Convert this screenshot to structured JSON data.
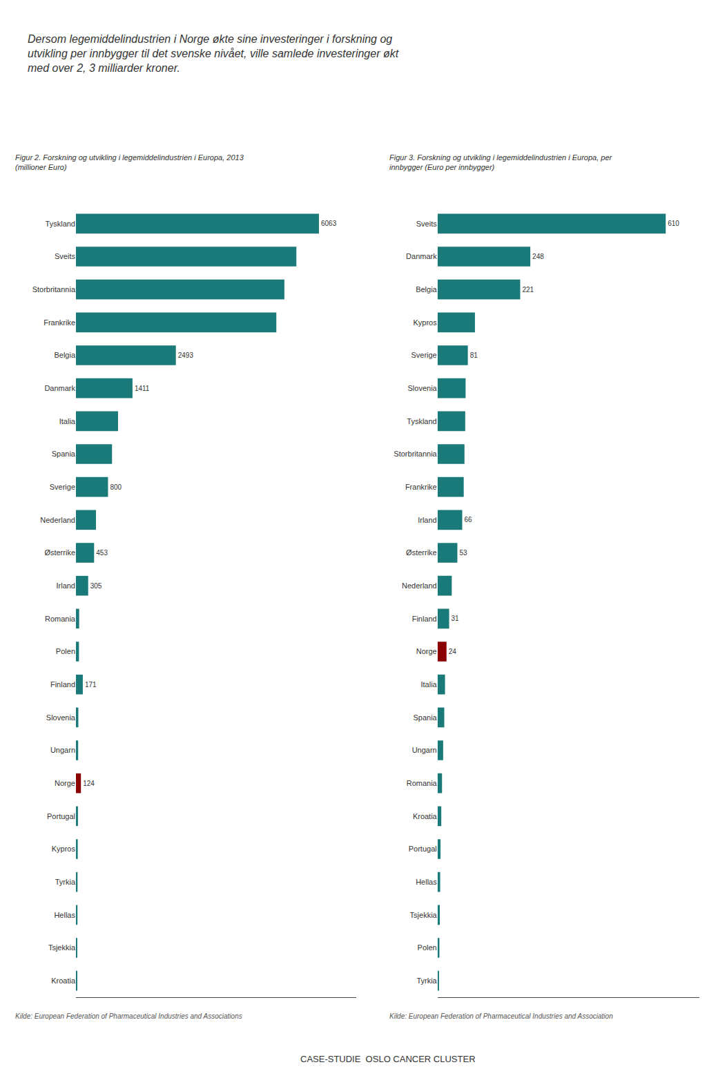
{
  "title": "Dersom legemiddelindustrien i Norge økte sine investeringer i forskning og\nutvikling per innbygger til det svenske nivået, ville samlede investeringer økt\nmed over 2, 3 milliarder kroner.",
  "annotations": [
    "CASE-STUDIE  OSLO CANCER CLUSTER"
  ],
  "chart_data": [
    {
      "type": "bar",
      "orientation": "horizontal",
      "title": "Figur 2. Forskning og utvikling i legemiddelindustrien i Europa, 2013\n(millioner Euro)",
      "categories": [
        "Tyskland",
        "Sveits",
        "Storbritannia",
        "Frankrike",
        "Belgia",
        "Danmark",
        "Italia",
        "Spania",
        "Sverige",
        "Nederland",
        "Østerrike",
        "Irland",
        "Romania",
        "Polen",
        "Finland",
        "Slovenia",
        "Ungarn",
        "Norge",
        "Portugal",
        "Kypros",
        "Tyrkia",
        "Hellas",
        "Tsjekkia",
        "Kroatia"
      ],
      "values": [
        6063,
        5500,
        5200,
        5000,
        2493,
        1411,
        1050,
        900,
        800,
        500,
        453,
        305,
        80,
        75,
        171,
        60,
        55,
        124,
        50,
        45,
        40,
        38,
        35,
        30
      ],
      "value_labels": [
        "6063",
        null,
        null,
        null,
        "2493",
        "1411",
        null,
        null,
        "800",
        null,
        "453",
        "305",
        null,
        null,
        "171",
        null,
        null,
        "124",
        null,
        null,
        null,
        null,
        null,
        null
      ],
      "colors": [
        "#1a7a7a",
        "#1a7a7a",
        "#1a7a7a",
        "#1a7a7a",
        "#1a7a7a",
        "#1a7a7a",
        "#1a7a7a",
        "#1a7a7a",
        "#1a7a7a",
        "#1a7a7a",
        "#1a7a7a",
        "#1a7a7a",
        "#1a7a7a",
        "#1a7a7a",
        "#1a7a7a",
        "#1a7a7a",
        "#1a7a7a",
        "#8B0000",
        "#1a7a7a",
        "#1a7a7a",
        "#1a7a7a",
        "#1a7a7a",
        "#1a7a7a",
        "#1a7a7a"
      ],
      "xlim": [
        0,
        7000
      ],
      "tick_labels": "y",
      "grid": false,
      "annotations": [
        "Kilde: European Federation of Pharmaceutical Industries and Associations"
      ]
    },
    {
      "type": "bar",
      "orientation": "horizontal",
      "title": "Figur 3. Forskning og utvikling i legemiddelindustrien i Europa, per\ninnbygger (Euro per innbygger)",
      "categories": [
        "Sveits",
        "Danmark",
        "Belgia",
        "Kypros",
        "Sverige",
        "Slovenia",
        "Tyskland",
        "Storbritannia",
        "Frankrike",
        "Irland",
        "Østerrike",
        "Nederland",
        "Finland",
        "Norge",
        "Italia",
        "Spania",
        "Ungarn",
        "Romania",
        "Kroatia",
        "Portugal",
        "Hellas",
        "Tsjekkia",
        "Polen",
        "Tyrkia"
      ],
      "values": [
        610,
        248,
        221,
        100,
        81,
        75,
        74,
        72,
        70,
        66,
        53,
        38,
        31,
        24,
        20,
        18,
        15,
        12,
        10,
        8,
        7,
        6,
        5,
        4
      ],
      "value_labels": [
        "610",
        "248",
        "221",
        null,
        "81",
        null,
        null,
        null,
        null,
        "66",
        "53",
        null,
        "31",
        "24",
        null,
        null,
        null,
        null,
        null,
        null,
        null,
        null,
        null,
        null
      ],
      "colors": [
        "#1a7a7a",
        "#1a7a7a",
        "#1a7a7a",
        "#1a7a7a",
        "#1a7a7a",
        "#1a7a7a",
        "#1a7a7a",
        "#1a7a7a",
        "#1a7a7a",
        "#1a7a7a",
        "#1a7a7a",
        "#1a7a7a",
        "#1a7a7a",
        "#8B0000",
        "#1a7a7a",
        "#1a7a7a",
        "#1a7a7a",
        "#1a7a7a",
        "#1a7a7a",
        "#1a7a7a",
        "#1a7a7a",
        "#1a7a7a",
        "#1a7a7a",
        "#1a7a7a"
      ],
      "xlim": [
        0,
        700
      ],
      "tick_labels": "y",
      "grid": false,
      "annotations": [
        "Kilde: European Federation of Pharmaceutical Industries and Association"
      ]
    }
  ]
}
